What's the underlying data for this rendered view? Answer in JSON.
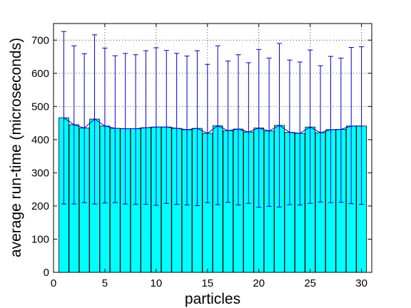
{
  "chart_data": {
    "type": "bar",
    "title": "",
    "xlabel": "particles",
    "ylabel": "average run-time (microseconds)",
    "xlim": [
      0,
      31
    ],
    "ylim": [
      0,
      750
    ],
    "xticks": [
      0,
      5,
      10,
      15,
      20,
      25,
      30
    ],
    "yticks": [
      0,
      100,
      200,
      300,
      400,
      500,
      600,
      700
    ],
    "grid": true,
    "colors": {
      "bar_fill": "#00ffff",
      "bar_edge": "#000000",
      "error_bar": "#0000cc",
      "grid": "#000000"
    },
    "x": [
      1,
      2,
      3,
      4,
      5,
      6,
      7,
      8,
      9,
      10,
      11,
      12,
      13,
      14,
      15,
      16,
      17,
      18,
      19,
      20,
      21,
      22,
      23,
      24,
      25,
      26,
      27,
      28,
      29,
      30
    ],
    "values": [
      466,
      445,
      435,
      462,
      441,
      434,
      433,
      433,
      436,
      438,
      438,
      434,
      430,
      434,
      419,
      442,
      427,
      432,
      423,
      435,
      426,
      443,
      422,
      419,
      438,
      421,
      430,
      431,
      441,
      441
    ],
    "error_low": [
      206,
      206,
      210,
      206,
      209,
      210,
      206,
      205,
      205,
      202,
      208,
      205,
      203,
      201,
      210,
      204,
      211,
      203,
      208,
      196,
      199,
      197,
      204,
      203,
      208,
      212,
      210,
      211,
      207,
      205
    ],
    "error_high": [
      726,
      683,
      659,
      716,
      676,
      653,
      660,
      656,
      668,
      677,
      669,
      660,
      652,
      668,
      627,
      683,
      637,
      656,
      632,
      672,
      646,
      690,
      640,
      634,
      670,
      623,
      651,
      646,
      678,
      680
    ]
  }
}
